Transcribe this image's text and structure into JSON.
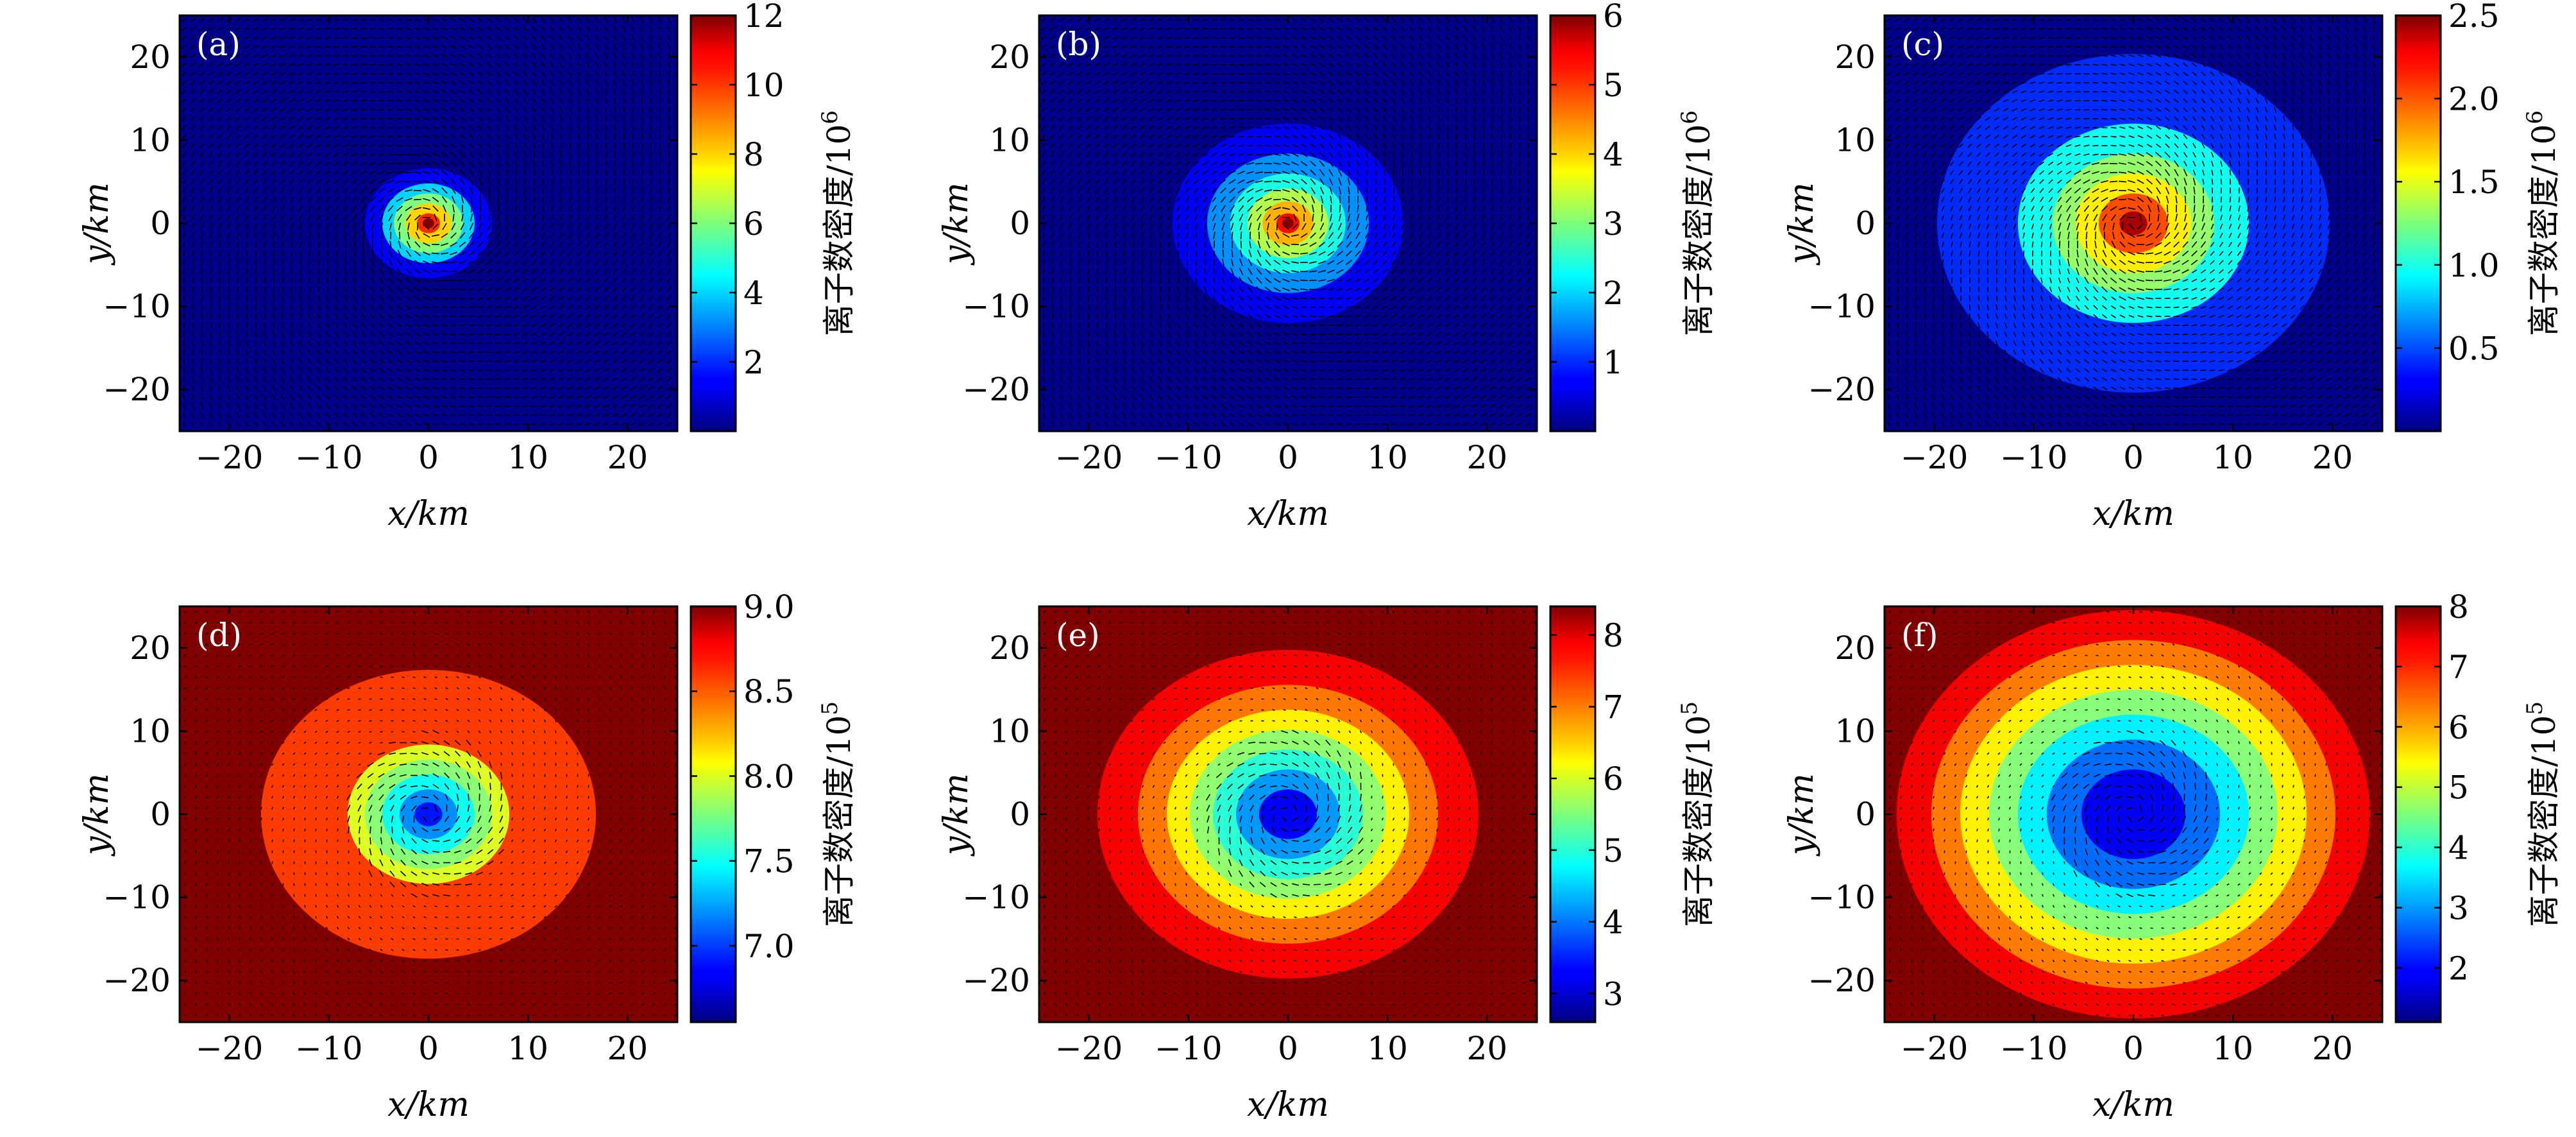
{
  "chart_data": [
    {
      "panel_label": "(a)",
      "type": "heatmap",
      "title": "",
      "xlabel": "x/km",
      "ylabel": "y/km",
      "xlim": [
        -25,
        25
      ],
      "ylim": [
        -25,
        25
      ],
      "xticks": [
        -20,
        -10,
        0,
        10,
        20
      ],
      "yticks": [
        -20,
        -10,
        0,
        10,
        20
      ],
      "xticklabels": [
        "−20",
        "−10",
        "0",
        "10",
        "20"
      ],
      "yticklabels": [
        "−20",
        "−10",
        "0",
        "10",
        "20"
      ],
      "colorbar": {
        "label": "离子数密度/10",
        "exponent": "6",
        "min": 0,
        "max": 12,
        "ticks": [
          2,
          4,
          6,
          8,
          10,
          12
        ],
        "ticklabels": [
          "2",
          "4",
          "6",
          "8",
          "10",
          "12"
        ]
      },
      "field": {
        "background": 0.1,
        "peak": 12,
        "levels": [
          [
            5.5,
            1.5
          ],
          [
            4,
            4
          ],
          [
            3,
            6
          ],
          [
            2,
            8
          ],
          [
            1,
            10
          ],
          [
            0.5,
            12
          ]
        ]
      },
      "quiver": {
        "arrow": "swirl",
        "density": "dense"
      }
    },
    {
      "panel_label": "(b)",
      "type": "heatmap",
      "title": "",
      "xlabel": "x/km",
      "ylabel": "y/km",
      "xlim": [
        -25,
        25
      ],
      "ylim": [
        -25,
        25
      ],
      "xticks": [
        -20,
        -10,
        0,
        10,
        20
      ],
      "yticks": [
        -20,
        -10,
        0,
        10,
        20
      ],
      "xticklabels": [
        "−20",
        "−10",
        "0",
        "10",
        "20"
      ],
      "yticklabels": [
        "−20",
        "−10",
        "0",
        "10",
        "20"
      ],
      "colorbar": {
        "label": "离子数密度/10",
        "exponent": "6",
        "min": 0,
        "max": 6,
        "ticks": [
          1,
          2,
          3,
          4,
          5,
          6
        ],
        "ticklabels": [
          "1",
          "2",
          "3",
          "4",
          "5",
          "6"
        ]
      },
      "field": {
        "background": 0.05,
        "peak": 6,
        "levels": [
          [
            10,
            0.7
          ],
          [
            7,
            1.6
          ],
          [
            5,
            2.4
          ],
          [
            3.5,
            3.3
          ],
          [
            2.2,
            4.2
          ],
          [
            1,
            5.2
          ],
          [
            0.5,
            6
          ]
        ]
      },
      "quiver": {
        "arrow": "swirl",
        "density": "dense"
      }
    },
    {
      "panel_label": "(c)",
      "type": "heatmap",
      "title": "",
      "xlabel": "x/km",
      "ylabel": "y/km",
      "xlim": [
        -25,
        25
      ],
      "ylim": [
        -25,
        25
      ],
      "xticks": [
        -20,
        -10,
        0,
        10,
        20
      ],
      "yticks": [
        -20,
        -10,
        0,
        10,
        20
      ],
      "xticklabels": [
        "−20",
        "−10",
        "0",
        "10",
        "20"
      ],
      "yticklabels": [
        "−20",
        "−10",
        "0",
        "10",
        "20"
      ],
      "colorbar": {
        "label": "离子数密度/10",
        "exponent": "6",
        "min": 0,
        "max": 2.5,
        "ticks": [
          0.5,
          1.0,
          1.5,
          2.0,
          2.5
        ],
        "ticklabels": [
          "0.5",
          "1.0",
          "1.5",
          "2.0",
          "2.5"
        ]
      },
      "field": {
        "background": 0.02,
        "peak": 2.5,
        "levels": [
          [
            17,
            0.42
          ],
          [
            10,
            0.98
          ],
          [
            7,
            1.3
          ],
          [
            5,
            1.6
          ],
          [
            3,
            2.0
          ],
          [
            1.2,
            2.4
          ]
        ]
      },
      "quiver": {
        "arrow": "swirl",
        "density": "dense"
      }
    },
    {
      "panel_label": "(d)",
      "type": "heatmap",
      "title": "",
      "xlabel": "x/km",
      "ylabel": "y/km",
      "xlim": [
        -25,
        25
      ],
      "ylim": [
        -25,
        25
      ],
      "xticks": [
        -20,
        -10,
        0,
        10,
        20
      ],
      "yticks": [
        -20,
        -10,
        0,
        10,
        20
      ],
      "xticklabels": [
        "−20",
        "−10",
        "0",
        "10",
        "20"
      ],
      "yticklabels": [
        "−20",
        "−10",
        "0",
        "10",
        "20"
      ],
      "colorbar": {
        "label": "离子数密度/10",
        "exponent": "5",
        "min": 6.55,
        "max": 9.0,
        "ticks": [
          7.0,
          7.5,
          8.0,
          8.5,
          9.0
        ],
        "ticklabels": [
          "7.0",
          "7.5",
          "8.0",
          "8.5",
          "9.0"
        ]
      },
      "field": {
        "background": 9.0,
        "peak": 6.7,
        "levels": [
          [
            14.5,
            8.55
          ],
          [
            7,
            8.0
          ],
          [
            5.5,
            7.8
          ],
          [
            4,
            7.5
          ],
          [
            2.5,
            7.2
          ],
          [
            1.2,
            6.9
          ]
        ]
      },
      "quiver": {
        "arrow": "swirl",
        "density": "sparse"
      }
    },
    {
      "panel_label": "(e)",
      "type": "heatmap",
      "title": "",
      "xlabel": "x/km",
      "ylabel": "y/km",
      "xlim": [
        -25,
        25
      ],
      "ylim": [
        -25,
        25
      ],
      "xticks": [
        -20,
        -10,
        0,
        10,
        20
      ],
      "yticks": [
        -20,
        -10,
        0,
        10,
        20
      ],
      "xticklabels": [
        "−20",
        "−10",
        "0",
        "10",
        "20"
      ],
      "yticklabels": [
        "−20",
        "−10",
        "0",
        "10",
        "20"
      ],
      "colorbar": {
        "label": "离子数密度/10",
        "exponent": "5",
        "min": 2.6,
        "max": 8.4,
        "ticks": [
          3,
          4,
          5,
          6,
          7,
          8
        ],
        "ticklabels": [
          "3",
          "4",
          "5",
          "6",
          "7",
          "8"
        ]
      },
      "field": {
        "background": 8.4,
        "peak": 2.8,
        "levels": [
          [
            16.5,
            7.7
          ],
          [
            13,
            7.0
          ],
          [
            10.5,
            6.3
          ],
          [
            8.5,
            5.6
          ],
          [
            6.5,
            5.0
          ],
          [
            4.5,
            4.2
          ],
          [
            2.5,
            3.3
          ]
        ]
      },
      "quiver": {
        "arrow": "swirl",
        "density": "sparse"
      }
    },
    {
      "panel_label": "(f)",
      "type": "heatmap",
      "title": "",
      "xlabel": "x/km",
      "ylabel": "y/km",
      "xlim": [
        -25,
        25
      ],
      "ylim": [
        -25,
        25
      ],
      "xticks": [
        -20,
        -10,
        0,
        10,
        20
      ],
      "yticks": [
        -20,
        -10,
        0,
        10,
        20
      ],
      "xticklabels": [
        "−20",
        "−10",
        "0",
        "10",
        "20"
      ],
      "yticklabels": [
        "−20",
        "−10",
        "0",
        "10",
        "20"
      ],
      "colorbar": {
        "label": "离子数密度/10",
        "exponent": "5",
        "min": 1.1,
        "max": 8.0,
        "ticks": [
          2,
          3,
          4,
          5,
          6,
          7,
          8
        ],
        "ticklabels": [
          "2",
          "3",
          "4",
          "5",
          "6",
          "7",
          "8"
        ]
      },
      "field": {
        "background": 8.0,
        "peak": 1.4,
        "levels": [
          [
            20.5,
            7.2
          ],
          [
            17.5,
            6.3
          ],
          [
            15,
            5.5
          ],
          [
            12.5,
            4.6
          ],
          [
            10,
            3.6
          ],
          [
            7.5,
            2.7
          ],
          [
            4.5,
            1.9
          ]
        ]
      },
      "quiver": {
        "arrow": "swirl",
        "density": "sparse"
      }
    }
  ]
}
